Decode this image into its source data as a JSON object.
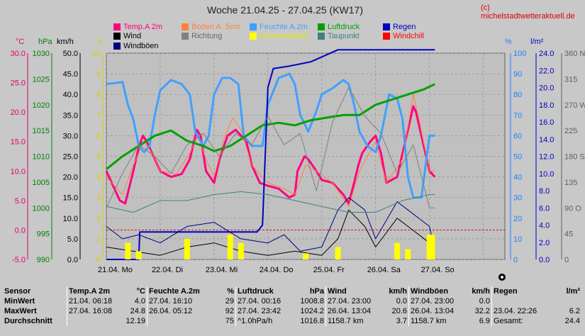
{
  "header": {
    "title": "Woche 21.04.25 - 27.04.25 (KW17)",
    "credit": "(c) michelstadtwetteraktuell.de"
  },
  "legend": [
    {
      "label": "Temp.A 2m",
      "color": "#ff0080"
    },
    {
      "label": "Boden A. 5cm",
      "color": "#ff8040"
    },
    {
      "label": "Feuchte A.2m",
      "color": "#40a0ff"
    },
    {
      "label": "Luftdruck",
      "color": "#00a000"
    },
    {
      "label": "Regen",
      "color": "#0000c0"
    },
    {
      "label": "Wind",
      "color": "#000000"
    },
    {
      "label": "Richtung",
      "color": "#808080"
    },
    {
      "label": "Sonnenschein",
      "color": "#ffff00"
    },
    {
      "label": "Taupunkt",
      "color": "#408080"
    },
    {
      "label": "Windchill",
      "color": "#ff0000"
    },
    {
      "label": "Windböen",
      "color": "#000080"
    }
  ],
  "axis_titles": {
    "temp": "°C",
    "press": "hPa",
    "wind": "km/h",
    "sun": "h",
    "hum": "%",
    "rain": "l/m²",
    "dir": "360 N"
  },
  "chart_data": {
    "type": "line",
    "x": [
      "21.04. Mo",
      "22.04. Di",
      "23.04. Mi",
      "24.04. Do",
      "25.04. Fr",
      "26.04. Sa",
      "27.04. So"
    ],
    "axes": {
      "temp": {
        "ticks": [
          "30.0",
          "25.0",
          "20.0",
          "15.0",
          "10.0",
          "5.0",
          "0.0",
          "-5.0"
        ],
        "ylim": [
          -5,
          30
        ],
        "color": "#e0006a"
      },
      "press": {
        "ticks": [
          "1030",
          "1025",
          "1020",
          "1015",
          "1010",
          "1005",
          "1000",
          "995",
          "990"
        ],
        "ylim": [
          990,
          1030
        ],
        "color": "#008000"
      },
      "wind": {
        "ticks": [
          "50.0",
          "45.0",
          "40.0",
          "35.0",
          "30.0",
          "25.0",
          "20.0",
          "15.0",
          "10.0",
          "5.0",
          "0.0"
        ],
        "ylim": [
          0,
          50
        ],
        "color": "#000000"
      },
      "sun": {
        "ticks": [
          "10",
          "9",
          "8",
          "7",
          "6",
          "5",
          "4",
          "3",
          "2",
          "1",
          "0"
        ],
        "ylim": [
          0,
          10
        ],
        "color": "#d0d000"
      },
      "hum": {
        "ticks": [
          "100",
          "90",
          "80",
          "70",
          "60",
          "50",
          "40",
          "30",
          "20",
          "10",
          "0"
        ],
        "ylim": [
          0,
          100
        ],
        "color": "#2080ff"
      },
      "rain": {
        "ticks": [
          "24.0",
          "22.0",
          "20.0",
          "18.0",
          "16.0",
          "14.0",
          "12.0",
          "10.0",
          "8.0",
          "6.0",
          "4.0",
          "2.0",
          "0.0"
        ],
        "ylim": [
          0,
          24
        ],
        "color": "#0000c0"
      },
      "dir": {
        "ticks": [
          "360 N",
          "315",
          "270 W",
          "225",
          "180 S",
          "135",
          "90 O",
          "45",
          "0"
        ],
        "ylim": [
          0,
          360
        ],
        "color": "#606060"
      }
    },
    "series": [
      {
        "name": "Temp.A 2m",
        "axis": "temp",
        "color": "#ff0080",
        "values": [
          [
            0,
            10
          ],
          [
            0.25,
            5
          ],
          [
            0.35,
            4.5
          ],
          [
            0.5,
            10
          ],
          [
            0.6,
            14
          ],
          [
            0.68,
            16
          ],
          [
            0.75,
            15
          ],
          [
            0.9,
            12
          ],
          [
            1,
            10
          ],
          [
            1.2,
            9
          ],
          [
            1.4,
            9.5
          ],
          [
            1.55,
            12
          ],
          [
            1.68,
            17
          ],
          [
            1.75,
            16
          ],
          [
            1.85,
            10
          ],
          [
            2,
            8
          ],
          [
            2.1,
            12
          ],
          [
            2.25,
            16
          ],
          [
            2.4,
            17
          ],
          [
            2.5,
            16
          ],
          [
            2.6,
            15
          ],
          [
            2.7,
            11
          ],
          [
            2.85,
            8
          ],
          [
            3,
            7.5
          ],
          [
            3.2,
            7
          ],
          [
            3.4,
            5.5
          ],
          [
            3.5,
            6
          ],
          [
            3.55,
            10
          ],
          [
            3.68,
            12.5
          ],
          [
            3.75,
            12
          ],
          [
            3.9,
            10
          ],
          [
            4,
            8.5
          ],
          [
            4.2,
            8
          ],
          [
            4.4,
            6
          ],
          [
            4.5,
            4.5
          ],
          [
            4.6,
            8
          ],
          [
            4.68,
            11
          ],
          [
            4.75,
            13
          ],
          [
            4.9,
            15
          ],
          [
            5,
            16
          ],
          [
            5.1,
            13
          ],
          [
            5.2,
            8
          ],
          [
            5.4,
            9
          ],
          [
            5.6,
            17
          ],
          [
            5.7,
            21
          ],
          [
            5.75,
            20
          ],
          [
            5.9,
            14
          ],
          [
            6,
            10
          ],
          [
            6.1,
            9
          ]
        ]
      },
      {
        "name": "Boden A. 5cm",
        "axis": "temp",
        "color": "#ff8040",
        "values": [
          [
            0,
            9
          ],
          [
            0.3,
            6
          ],
          [
            0.5,
            11
          ],
          [
            0.7,
            15
          ],
          [
            0.85,
            13
          ],
          [
            1,
            10
          ],
          [
            1.3,
            9.5
          ],
          [
            1.55,
            13
          ],
          [
            1.7,
            16
          ],
          [
            1.85,
            12
          ],
          [
            2,
            9
          ],
          [
            2.2,
            16
          ],
          [
            2.35,
            19
          ],
          [
            2.5,
            17
          ],
          [
            2.7,
            11
          ],
          [
            3,
            8
          ],
          [
            3.3,
            7
          ],
          [
            3.5,
            6
          ],
          [
            3.7,
            11
          ],
          [
            3.9,
            10
          ],
          [
            4.2,
            8
          ],
          [
            4.5,
            4
          ],
          [
            4.7,
            10
          ],
          [
            5,
            15
          ],
          [
            5.2,
            8
          ],
          [
            5.5,
            12
          ],
          [
            5.7,
            23
          ],
          [
            5.8,
            19
          ],
          [
            6,
            10
          ],
          [
            6.1,
            10
          ]
        ]
      },
      {
        "name": "Feuchte A.2m",
        "axis": "hum",
        "color": "#40a0ff",
        "values": [
          [
            0,
            85
          ],
          [
            0.3,
            86
          ],
          [
            0.4,
            75
          ],
          [
            0.5,
            68
          ],
          [
            0.6,
            55
          ],
          [
            0.7,
            52
          ],
          [
            0.8,
            55
          ],
          [
            0.9,
            70
          ],
          [
            1,
            82
          ],
          [
            1.2,
            87
          ],
          [
            1.4,
            85
          ],
          [
            1.55,
            80
          ],
          [
            1.65,
            62
          ],
          [
            1.8,
            55
          ],
          [
            1.9,
            60
          ],
          [
            2,
            80
          ],
          [
            2.15,
            88
          ],
          [
            2.3,
            88
          ],
          [
            2.45,
            85
          ],
          [
            2.55,
            60
          ],
          [
            2.7,
            55
          ],
          [
            2.9,
            55
          ],
          [
            3,
            75
          ],
          [
            3.2,
            88
          ],
          [
            3.4,
            90
          ],
          [
            3.5,
            85
          ],
          [
            3.6,
            70
          ],
          [
            3.75,
            62
          ],
          [
            3.9,
            72
          ],
          [
            4,
            80
          ],
          [
            4.2,
            83
          ],
          [
            4.4,
            87
          ],
          [
            4.5,
            85
          ],
          [
            4.6,
            75
          ],
          [
            4.7,
            62
          ],
          [
            4.85,
            55
          ],
          [
            5,
            52
          ],
          [
            5.1,
            60
          ],
          [
            5.25,
            80
          ],
          [
            5.4,
            78
          ],
          [
            5.5,
            68
          ],
          [
            5.6,
            40
          ],
          [
            5.7,
            30
          ],
          [
            5.85,
            30
          ],
          [
            6,
            60
          ],
          [
            6.1,
            60
          ]
        ]
      },
      {
        "name": "Luftdruck",
        "axis": "press",
        "color": "#00a000",
        "values": [
          [
            0,
            1007.5
          ],
          [
            0.3,
            1010
          ],
          [
            0.6,
            1012
          ],
          [
            0.9,
            1014
          ],
          [
            1.2,
            1015
          ],
          [
            1.5,
            1013
          ],
          [
            1.8,
            1012
          ],
          [
            2.0,
            1011
          ],
          [
            2.3,
            1012
          ],
          [
            2.6,
            1014
          ],
          [
            2.9,
            1016
          ],
          [
            3.2,
            1016.5
          ],
          [
            3.5,
            1016
          ],
          [
            3.8,
            1017
          ],
          [
            4.1,
            1017.5
          ],
          [
            4.4,
            1018
          ],
          [
            4.7,
            1018
          ],
          [
            5.0,
            1020
          ],
          [
            5.3,
            1021
          ],
          [
            5.6,
            1022
          ],
          [
            5.9,
            1023
          ],
          [
            6.1,
            1024
          ]
        ]
      },
      {
        "name": "Regen",
        "axis": "rain",
        "color": "#0000c0",
        "values": [
          [
            0,
            0
          ],
          [
            0.6,
            0
          ],
          [
            0.62,
            3.2
          ],
          [
            2.8,
            3.2
          ],
          [
            2.9,
            4
          ],
          [
            3.0,
            20
          ],
          [
            3.1,
            22.2
          ],
          [
            3.4,
            22.5
          ],
          [
            3.8,
            23
          ],
          [
            4.3,
            24.4
          ],
          [
            6.1,
            24.4
          ]
        ]
      },
      {
        "name": "Wind",
        "axis": "wind",
        "color": "#000000",
        "values": [
          [
            0,
            3
          ],
          [
            0.5,
            2
          ],
          [
            1,
            1
          ],
          [
            1.5,
            3
          ],
          [
            2,
            4
          ],
          [
            2.5,
            2
          ],
          [
            3,
            1
          ],
          [
            3.5,
            2
          ],
          [
            4,
            1
          ],
          [
            4.3,
            5
          ],
          [
            4.5,
            12
          ],
          [
            4.8,
            8
          ],
          [
            5,
            3
          ],
          [
            5.4,
            10
          ],
          [
            5.6,
            8
          ],
          [
            6,
            4
          ],
          [
            6.1,
            1
          ]
        ]
      },
      {
        "name": "Windböen",
        "axis": "wind",
        "color": "#000080",
        "values": [
          [
            0,
            8
          ],
          [
            0.3,
            5
          ],
          [
            0.6,
            6
          ],
          [
            1,
            4
          ],
          [
            1.5,
            8
          ],
          [
            2,
            9
          ],
          [
            2.5,
            5
          ],
          [
            3,
            4
          ],
          [
            3.3,
            6
          ],
          [
            3.6,
            2
          ],
          [
            4,
            3
          ],
          [
            4.3,
            12
          ],
          [
            4.5,
            15
          ],
          [
            4.8,
            12
          ],
          [
            5,
            5
          ],
          [
            5.4,
            14
          ],
          [
            5.6,
            12
          ],
          [
            6,
            8
          ],
          [
            6.1,
            2
          ]
        ]
      },
      {
        "name": "Taupunkt",
        "axis": "temp",
        "color": "#408080",
        "values": [
          [
            0,
            4
          ],
          [
            0.5,
            3
          ],
          [
            1,
            5
          ],
          [
            1.5,
            5
          ],
          [
            2,
            6
          ],
          [
            2.5,
            6.5
          ],
          [
            3,
            6
          ],
          [
            3.5,
            5
          ],
          [
            4,
            4
          ],
          [
            4.5,
            3
          ],
          [
            5,
            3
          ],
          [
            5.5,
            5
          ],
          [
            6,
            6
          ],
          [
            6.1,
            6
          ]
        ]
      },
      {
        "name": "Richtung",
        "axis": "dir",
        "color": "#808080",
        "values": [
          [
            0,
            90
          ],
          [
            0.3,
            150
          ],
          [
            0.6,
            200
          ],
          [
            0.9,
            180
          ],
          [
            1.2,
            150
          ],
          [
            1.5,
            200
          ],
          [
            1.8,
            220
          ],
          [
            2.1,
            180
          ],
          [
            2.4,
            220
          ],
          [
            2.7,
            200
          ],
          [
            3,
            250
          ],
          [
            3.3,
            200
          ],
          [
            3.6,
            220
          ],
          [
            3.9,
            120
          ],
          [
            4.2,
            240
          ],
          [
            4.5,
            300
          ],
          [
            4.8,
            250
          ],
          [
            5.1,
            220
          ],
          [
            5.4,
            150
          ],
          [
            5.7,
            200
          ],
          [
            6,
            90
          ],
          [
            6.1,
            90
          ]
        ]
      },
      {
        "name": "Sonnenschein",
        "axis": "sun",
        "color": "#ffff00",
        "values": [
          [
            0.4,
            0.8
          ],
          [
            0.6,
            0.4
          ],
          [
            1.5,
            1
          ],
          [
            2.3,
            1.2
          ],
          [
            2.5,
            0.8
          ],
          [
            3.7,
            0.3
          ],
          [
            4.3,
            0.6
          ],
          [
            5.4,
            0.8
          ],
          [
            5.6,
            0.5
          ],
          [
            6.0,
            1.2
          ],
          [
            6.05,
            1.2
          ]
        ]
      }
    ],
    "grid": true
  },
  "stats": {
    "headers": [
      "Sensor",
      "Temp.A 2m",
      "°C",
      "Feuchte A.2m",
      "%",
      "Luftdruck",
      "hPa",
      "Wind",
      "km/h",
      "Windböen",
      "km/h",
      "Regen",
      "l/m²"
    ],
    "rows": [
      [
        "MinWert",
        "21.04.  06:18",
        "4.0",
        "27.04.  16:10",
        "29",
        "27.04.  00:16",
        "1008.8",
        "27.04.  23:00",
        "0.0",
        "27.04.  23:00",
        "0.0",
        "",
        ""
      ],
      [
        "MaxWert",
        "27.04.  16:08",
        "24.8",
        "26.04.  05:12",
        "92",
        "27.04.  23:42",
        "1024.2",
        "26.04.  13:04",
        "20.6",
        "26.04.  13:04",
        "32.2",
        "23.04.  22:26",
        "6.2"
      ],
      [
        "Durchschnitt",
        "",
        "12.19",
        "",
        "75",
        "^1.0hPa/h",
        "1016.8",
        "1158.7 km",
        "3.7",
        "1158.7 km",
        "6.9",
        "Gesamt:",
        "24.4"
      ]
    ]
  }
}
